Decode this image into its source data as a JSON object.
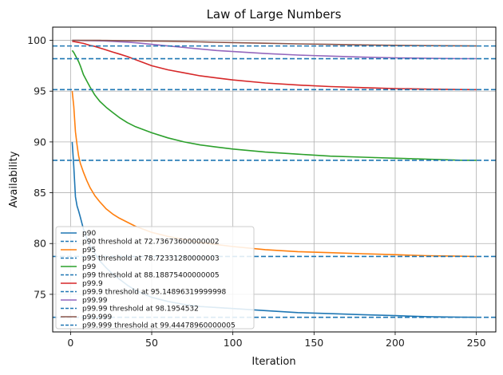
{
  "chart_data": {
    "type": "line",
    "title": "Law of Large Numbers",
    "xlabel": "Iteration",
    "ylabel": "Availability",
    "xlim": [
      -11,
      262
    ],
    "ylim": [
      71.3,
      101.3
    ],
    "xticks": [
      0,
      50,
      100,
      150,
      200,
      250
    ],
    "yticks": [
      75,
      80,
      85,
      90,
      95,
      100
    ],
    "grid": true,
    "legend_position": "bottom-left",
    "x": [
      1,
      2,
      3,
      4,
      5,
      6,
      8,
      10,
      12,
      15,
      18,
      22,
      26,
      30,
      35,
      40,
      50,
      60,
      70,
      80,
      90,
      100,
      120,
      140,
      160,
      180,
      200,
      220,
      240,
      250
    ],
    "series": [
      {
        "name": "p90",
        "color": "#1f77b4",
        "values": [
          90.0,
          87.6,
          84.6,
          83.7,
          83.2,
          82.6,
          81.4,
          80.5,
          79.8,
          79.0,
          78.3,
          77.6,
          77.0,
          76.5,
          75.9,
          75.4,
          74.7,
          74.3,
          74.0,
          73.8,
          73.7,
          73.6,
          73.4,
          73.2,
          73.1,
          73.0,
          72.9,
          72.8,
          72.75,
          72.74
        ]
      },
      {
        "name": "p90 threshold at 72.73673600000002",
        "color": "#1f77b4",
        "dashed": true,
        "level": 72.73673600000002
      },
      {
        "name": "p95",
        "color": "#ff7f0e",
        "values": [
          95.0,
          93.5,
          91.0,
          89.7,
          88.6,
          87.9,
          87.0,
          86.2,
          85.5,
          84.7,
          84.1,
          83.4,
          82.9,
          82.5,
          82.1,
          81.7,
          81.1,
          80.7,
          80.4,
          80.1,
          79.9,
          79.7,
          79.4,
          79.2,
          79.1,
          79.0,
          78.9,
          78.8,
          78.75,
          78.72
        ]
      },
      {
        "name": "p95 threshold at 78.72331280000003",
        "color": "#1f77b4",
        "dashed": true,
        "level": 78.72331280000003
      },
      {
        "name": "p99",
        "color": "#2ca02c",
        "values": [
          99.0,
          98.8,
          98.5,
          98.2,
          97.9,
          97.5,
          96.6,
          96.0,
          95.4,
          94.6,
          94.0,
          93.4,
          92.9,
          92.4,
          91.9,
          91.5,
          90.9,
          90.4,
          90.0,
          89.7,
          89.5,
          89.3,
          89.0,
          88.8,
          88.6,
          88.5,
          88.4,
          88.3,
          88.2,
          88.19
        ]
      },
      {
        "name": "p99 threshold at 88.18875400000005",
        "color": "#1f77b4",
        "dashed": true,
        "level": 88.18875400000005
      },
      {
        "name": "p99.9",
        "color": "#d62728",
        "values": [
          99.9,
          99.88,
          99.85,
          99.82,
          99.79,
          99.76,
          99.7,
          99.6,
          99.5,
          99.4,
          99.25,
          99.05,
          98.85,
          98.65,
          98.4,
          98.1,
          97.5,
          97.1,
          96.8,
          96.5,
          96.3,
          96.1,
          95.8,
          95.6,
          95.45,
          95.35,
          95.25,
          95.2,
          95.16,
          95.15
        ]
      },
      {
        "name": "p99.9 threshold at 95.14896319999998",
        "color": "#1f77b4",
        "dashed": true,
        "level": 95.14896319999998
      },
      {
        "name": "p99.99",
        "color": "#9467bd",
        "values": [
          99.99,
          99.99,
          99.99,
          99.99,
          99.99,
          99.98,
          99.98,
          99.97,
          99.97,
          99.96,
          99.95,
          99.93,
          99.9,
          99.86,
          99.82,
          99.76,
          99.6,
          99.45,
          99.3,
          99.15,
          99.0,
          98.9,
          98.7,
          98.55,
          98.45,
          98.35,
          98.28,
          98.23,
          98.2,
          98.2
        ]
      },
      {
        "name": "p99.99 threshold at 98.1954532",
        "color": "#1f77b4",
        "dashed": true,
        "level": 98.1954532
      },
      {
        "name": "p99.999",
        "color": "#8c564b",
        "values": [
          99.999,
          99.999,
          99.999,
          99.999,
          99.999,
          99.999,
          99.998,
          99.998,
          99.997,
          99.996,
          99.995,
          99.99,
          99.98,
          99.97,
          99.96,
          99.95,
          99.93,
          99.91,
          99.88,
          99.85,
          99.81,
          99.78,
          99.71,
          99.65,
          99.6,
          99.55,
          99.51,
          99.48,
          99.46,
          99.45
        ]
      },
      {
        "name": "p99.999 threshold at 99.44478960000005",
        "color": "#1f77b4",
        "dashed": true,
        "level": 99.44478960000005
      }
    ]
  }
}
